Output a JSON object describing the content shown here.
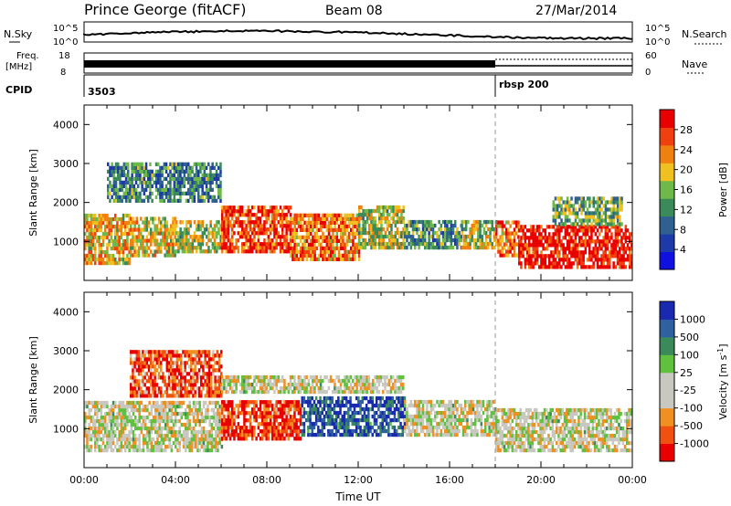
{
  "header": {
    "station": "Prince George (fitACF)",
    "beam": "Beam 08",
    "date": "27/Mar/2014"
  },
  "aux_panels": {
    "nsky_label": "N.Sky",
    "nsky_top": "10^5",
    "nsky_bottom": "10^0",
    "nsearch_label": "N.Search",
    "nsearch_top": "10^5",
    "nsearch_bottom": "10^0",
    "freq_label": "Freq.",
    "freq_unit": "[MHz]",
    "freq_top": "18",
    "freq_bottom": "8",
    "nave_label": "Nave",
    "nave_top": "60",
    "nave_bottom": "0",
    "cpid_label": "CPID",
    "cpid_values": [
      "3503",
      "rbsp 200"
    ]
  },
  "colors": {
    "power": [
      "#1010e0",
      "#1d3aa8",
      "#2f6090",
      "#3a8a5a",
      "#6fb84a",
      "#f0c020",
      "#f08010",
      "#f04010",
      "#e80000"
    ],
    "velocity": [
      "#e80000",
      "#f05010",
      "#f09020",
      "#c8c8c0",
      "#c8c8c0",
      "#60c040",
      "#3a8a5a",
      "#2f60a0",
      "#1a2ab0"
    ],
    "ground_scatter": "#c0c0b8"
  },
  "chart_data": [
    {
      "type": "heatmap",
      "title": "",
      "ylabel": "Slant Range [km]",
      "xlabel": "",
      "xlim": [
        "00:00",
        "24:00"
      ],
      "ylim": [
        0,
        4500
      ],
      "yticks": [
        "1000",
        "2000",
        "3000",
        "4000"
      ],
      "colorbar": {
        "label": "Power [dB]",
        "ticks": [
          "4",
          "8",
          "12",
          "16",
          "20",
          "24",
          "28"
        ],
        "range": [
          0,
          32
        ]
      },
      "bands": [
        {
          "t0": 0,
          "t1": 2,
          "r0": 400,
          "r1": 1700,
          "level": 0.65
        },
        {
          "t0": 2,
          "t1": 4,
          "r0": 600,
          "r1": 1600,
          "level": 0.6
        },
        {
          "t0": 4,
          "t1": 6,
          "r0": 700,
          "r1": 1500,
          "level": 0.55
        },
        {
          "t0": 6,
          "t1": 9,
          "r0": 700,
          "r1": 1900,
          "level": 0.85
        },
        {
          "t0": 9,
          "t1": 12,
          "r0": 500,
          "r1": 1700,
          "level": 0.75
        },
        {
          "t0": 12,
          "t1": 14,
          "r0": 800,
          "r1": 1900,
          "level": 0.55
        },
        {
          "t0": 14,
          "t1": 16.5,
          "r0": 800,
          "r1": 1500,
          "level": 0.4
        },
        {
          "t0": 16.5,
          "t1": 18,
          "r0": 800,
          "r1": 1500,
          "level": 0.55
        },
        {
          "t0": 18,
          "t1": 19,
          "r0": 600,
          "r1": 1500,
          "level": 0.75
        },
        {
          "t0": 19,
          "t1": 24,
          "r0": 300,
          "r1": 1400,
          "level": 0.95
        },
        {
          "t0": 1,
          "t1": 6,
          "r0": 2000,
          "r1": 3000,
          "level": 0.35
        },
        {
          "t0": 20.5,
          "t1": 23.5,
          "r0": 1400,
          "r1": 2100,
          "level": 0.45
        }
      ]
    },
    {
      "type": "heatmap",
      "title": "",
      "ylabel": "Slant Range [km]",
      "xlabel": "Time UT",
      "xlim": [
        "00:00",
        "24:00"
      ],
      "ylim": [
        0,
        4500
      ],
      "yticks": [
        "1000",
        "2000",
        "3000",
        "4000"
      ],
      "xticks": [
        "00:00",
        "04:00",
        "08:00",
        "12:00",
        "16:00",
        "20:00",
        "00:00"
      ],
      "colorbar": {
        "label": "Velocity [m s^-1]",
        "ticks": [
          "-1000",
          "-500",
          "-100",
          "-25",
          "25",
          "100",
          "500",
          "1000"
        ],
        "range": [
          -1000,
          1000
        ]
      },
      "bands": [
        {
          "t0": 0,
          "t1": 6,
          "r0": 400,
          "r1": 1700,
          "level": 0.45
        },
        {
          "t0": 2,
          "t1": 6,
          "r0": 1800,
          "r1": 3000,
          "level": 0.15
        },
        {
          "t0": 6,
          "t1": 9.5,
          "r0": 700,
          "r1": 1700,
          "level": 0.12
        },
        {
          "t0": 9.5,
          "t1": 14,
          "r0": 800,
          "r1": 1800,
          "level": 0.88
        },
        {
          "t0": 14,
          "t1": 18,
          "r0": 800,
          "r1": 1700,
          "level": 0.45
        },
        {
          "t0": 18,
          "t1": 24,
          "r0": 400,
          "r1": 1500,
          "level": 0.45
        },
        {
          "t0": 6,
          "t1": 14,
          "r0": 1900,
          "r1": 2300,
          "level": 0.45
        }
      ]
    }
  ]
}
